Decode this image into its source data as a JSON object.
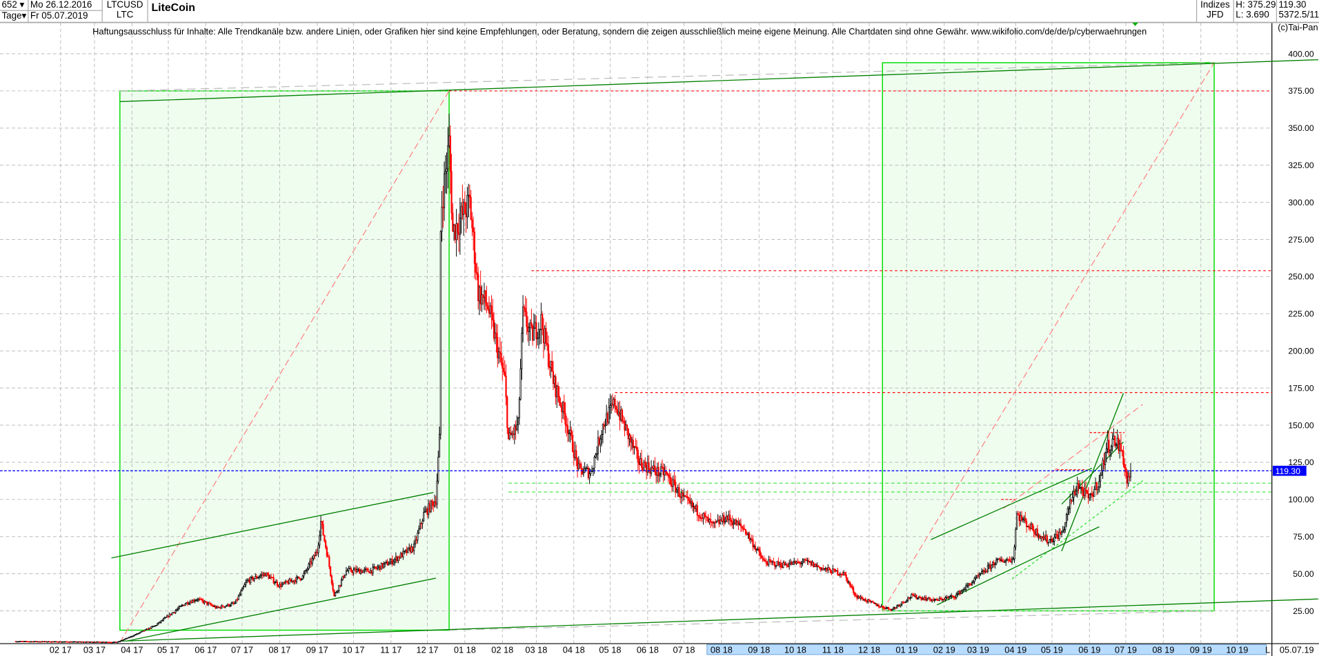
{
  "header": {
    "count_select": "652",
    "period_select": "Tage",
    "date_from": "Mo 26.12.2016",
    "date_to": "Fr 05.07.2019",
    "symbol": "LTCUSD",
    "symbol_short": "LTC",
    "title": "LiteCoin",
    "category": "Indizes",
    "source": "JFD",
    "high": "H: 375.29",
    "low": "L: 3.690",
    "last": "119.30",
    "extra": "5372.5/11",
    "copyright": "(c)Tai-Pan"
  },
  "disclaimer": "Haftungsausschluss für Inhalte: Alle Trendkanäle bzw. andere Linien, oder Grafiken hier sind keine Empfehlungen, oder Beratung, sondern die zeigen ausschließlich meine eigene Meinung. Alle Chartdaten sind ohne Gewähr.  www.wikifolio.com/de/de/p/cyberwaehrungen",
  "bottom": {
    "scale_marker": "L",
    "last_date": "05.07.19"
  },
  "colors": {
    "up": "#000000",
    "down": "#ff0000",
    "box_fill": "#effdef",
    "box_border": "#00dd00",
    "trend": "#008000",
    "last_price": "#0000ff",
    "level": "#ff0000",
    "highlight": "#b8dcff"
  },
  "chart_data": {
    "type": "candlestick",
    "title": "",
    "ylim": [
      3.69,
      400
    ],
    "y_ticks": [
      "25.00",
      "50.00",
      "75.00",
      "100.00",
      "125.00",
      "150.00",
      "175.00",
      "200.00",
      "225.00",
      "250.00",
      "275.00",
      "300.00",
      "325.00",
      "350.00",
      "375.00",
      "400.00"
    ],
    "x_ticks": [
      "02 17",
      "03 17",
      "04 17",
      "05 17",
      "06 17",
      "07 17",
      "08 17",
      "09 17",
      "10 17",
      "11 17",
      "12 17",
      "01 18",
      "02 18",
      "03 18",
      "04 18",
      "05 18",
      "06 18",
      "07 18",
      "08 18",
      "09 18",
      "10 18",
      "11 18",
      "12 18",
      "01 19",
      "02 19",
      "03 19",
      "04 19",
      "05 19",
      "06 19",
      "07 19",
      "08 19",
      "09 19",
      "10 19"
    ],
    "x_range": [
      "2016-12-26",
      "2019-12-07"
    ],
    "grid": true,
    "last_price": 119.3,
    "price_path": [
      [
        "2016-12-26",
        4.5
      ],
      [
        "2017-03-20",
        4
      ],
      [
        "2017-04-01",
        8
      ],
      [
        "2017-04-20",
        15
      ],
      [
        "2017-05-15",
        30
      ],
      [
        "2017-05-25",
        33
      ],
      [
        "2017-06-10",
        27
      ],
      [
        "2017-06-25",
        30
      ],
      [
        "2017-07-05",
        45
      ],
      [
        "2017-07-20",
        50
      ],
      [
        "2017-08-01",
        42
      ],
      [
        "2017-08-20",
        48
      ],
      [
        "2017-09-01",
        65
      ],
      [
        "2017-09-04",
        85
      ],
      [
        "2017-09-10",
        60
      ],
      [
        "2017-09-15",
        35
      ],
      [
        "2017-09-25",
        52
      ],
      [
        "2017-10-15",
        52
      ],
      [
        "2017-11-01",
        58
      ],
      [
        "2017-11-20",
        68
      ],
      [
        "2017-11-28",
        90
      ],
      [
        "2017-12-08",
        100
      ],
      [
        "2017-12-11",
        140
      ],
      [
        "2017-12-12",
        280
      ],
      [
        "2017-12-13",
        300
      ],
      [
        "2017-12-19",
        340
      ],
      [
        "2017-12-22",
        280
      ],
      [
        "2018-01-05",
        300
      ],
      [
        "2018-01-12",
        240
      ],
      [
        "2018-01-20",
        230
      ],
      [
        "2018-02-03",
        180
      ],
      [
        "2018-02-06",
        140
      ],
      [
        "2018-02-14",
        150
      ],
      [
        "2018-02-18",
        225
      ],
      [
        "2018-02-25",
        210
      ],
      [
        "2018-03-05",
        220
      ],
      [
        "2018-03-15",
        180
      ],
      [
        "2018-03-25",
        155
      ],
      [
        "2018-04-05",
        120
      ],
      [
        "2018-04-15",
        118
      ],
      [
        "2018-04-25",
        150
      ],
      [
        "2018-05-05",
        165
      ],
      [
        "2018-05-15",
        145
      ],
      [
        "2018-05-25",
        125
      ],
      [
        "2018-06-10",
        118
      ],
      [
        "2018-06-15",
        118
      ],
      [
        "2018-07-01",
        100
      ],
      [
        "2018-07-15",
        90
      ],
      [
        "2018-07-25",
        82
      ],
      [
        "2018-08-05",
        88
      ],
      [
        "2018-08-20",
        80
      ],
      [
        "2018-09-05",
        58
      ],
      [
        "2018-09-20",
        56
      ],
      [
        "2018-10-10",
        58
      ],
      [
        "2018-10-25",
        53
      ],
      [
        "2018-11-10",
        50
      ],
      [
        "2018-11-20",
        35
      ],
      [
        "2018-12-10",
        28
      ],
      [
        "2018-12-20",
        26
      ],
      [
        "2019-01-05",
        35
      ],
      [
        "2019-01-25",
        32
      ],
      [
        "2019-02-10",
        35
      ],
      [
        "2019-02-25",
        45
      ],
      [
        "2019-03-15",
        58
      ],
      [
        "2019-03-30",
        60
      ],
      [
        "2019-04-02",
        90
      ],
      [
        "2019-04-15",
        80
      ],
      [
        "2019-04-28",
        72
      ],
      [
        "2019-05-10",
        78
      ],
      [
        "2019-05-15",
        95
      ],
      [
        "2019-05-22",
        110
      ],
      [
        "2019-06-01",
        100
      ],
      [
        "2019-06-10",
        115
      ],
      [
        "2019-06-15",
        135
      ],
      [
        "2019-06-22",
        140
      ],
      [
        "2019-06-28",
        132
      ],
      [
        "2019-07-02",
        112
      ],
      [
        "2019-07-05",
        119.3
      ]
    ],
    "boxes": [
      {
        "from": [
          "2017-03-22",
          12
        ],
        "to": [
          "2017-12-19",
          375
        ]
      },
      {
        "from": [
          "2018-12-12",
          25
        ],
        "to": [
          "2019-09-12",
          394
        ]
      }
    ],
    "trend_lines": [
      [
        [
          "2017-03-15",
          60.6
        ],
        [
          "2017-12-06",
          104.7
        ]
      ],
      [
        [
          "2017-03-27",
          4.6
        ],
        [
          "2017-12-08",
          47
        ]
      ],
      [
        [
          "2017-03-22",
          367.8
        ],
        [
          "2019-12-07",
          396
        ]
      ],
      [
        [
          "2017-03-22",
          4.6
        ],
        [
          "2019-12-07",
          33
        ]
      ],
      [
        [
          "2019-01-21",
          73
        ],
        [
          "2019-06-03",
          121
        ]
      ],
      [
        [
          "2019-01-26",
          29
        ],
        [
          "2019-06-09",
          81.6
        ]
      ],
      [
        [
          "2019-05-09",
          65.2
        ],
        [
          "2019-06-29",
          171.5
        ]
      ],
      [
        [
          "2019-05-09",
          96.8
        ],
        [
          "2019-06-29",
          138.7
        ]
      ]
    ],
    "diagonals": [
      [
        [
          "2017-03-22",
          3.7
        ],
        [
          "2017-12-19",
          375
        ]
      ],
      [
        [
          "2018-12-12",
          25
        ],
        [
          "2019-09-12",
          394
        ]
      ],
      [
        [
          "2019-03-22",
          94
        ],
        [
          "2019-07-15",
          164
        ]
      ]
    ],
    "support_dashed": [
      [
        [
          "2019-03-29",
          46.5
        ],
        [
          "2019-07-15",
          112.7
        ]
      ]
    ],
    "gray_lines": [
      [
        [
          "2017-03-22",
          375
        ],
        [
          "2019-09-12",
          394
        ]
      ],
      [
        [
          "2017-12-19",
          12
        ],
        [
          "2019-09-12",
          25
        ]
      ]
    ],
    "resistance_levels": [
      {
        "from": "2017-12-19",
        "price": 375
      },
      {
        "from": "2018-02-25",
        "price": 254
      },
      {
        "from": "2018-05-05",
        "price": 172
      }
    ],
    "short_levels": [
      {
        "from": "2019-03-20",
        "to": "2019-04-02",
        "price": 100
      },
      {
        "from": "2019-05-05",
        "to": "2019-05-30",
        "price": 120
      },
      {
        "from": "2019-06-01",
        "to": "2019-06-30",
        "price": 145
      }
    ],
    "green_levels": [
      {
        "from": "2018-02-06",
        "price": 105
      },
      {
        "from": "2018-02-06",
        "price": 111
      }
    ]
  }
}
